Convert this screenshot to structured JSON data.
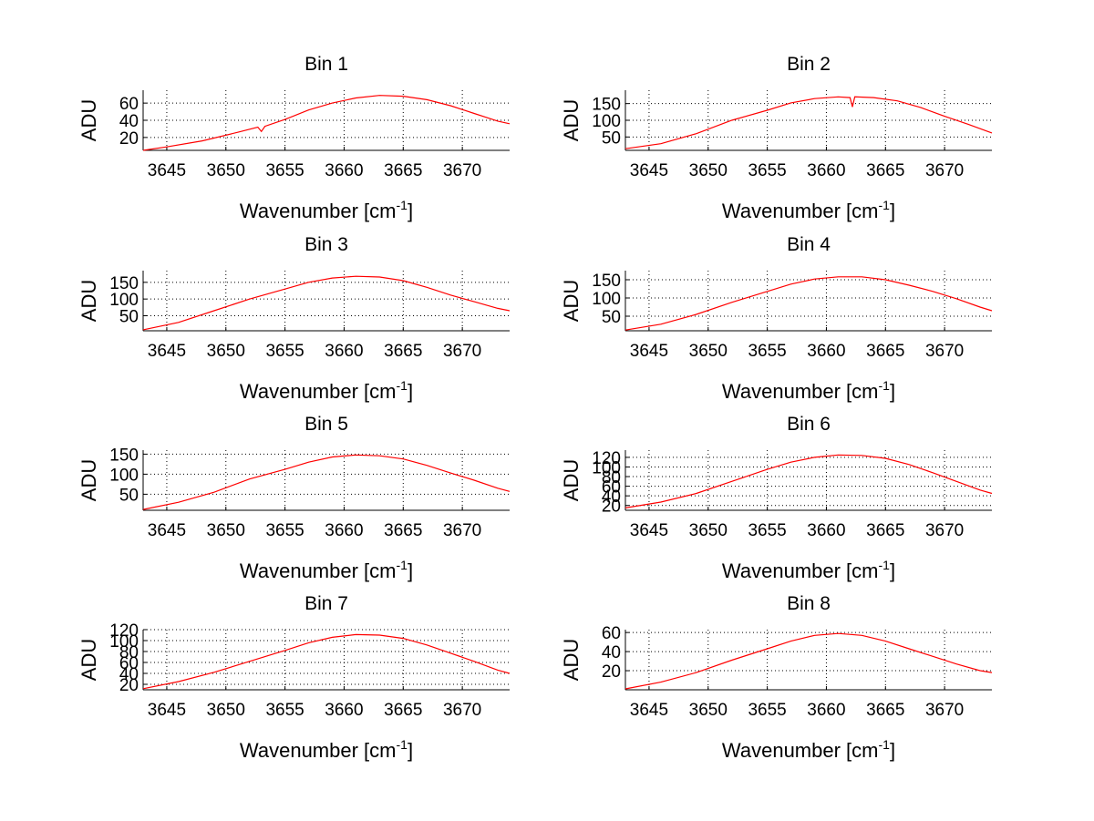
{
  "chart_data": [
    {
      "type": "line",
      "title": "Bin 1",
      "xlabel": "Wavenumber [cm",
      "xlabel_sup": "-1",
      "xlabel_end": "]",
      "ylabel": "ADU",
      "xlim": [
        3643,
        3674
      ],
      "ylim": [
        5,
        75
      ],
      "xticks": [
        3645,
        3650,
        3655,
        3660,
        3665,
        3670
      ],
      "yticks": [
        20,
        40,
        60
      ],
      "grid": true,
      "series": [
        {
          "color": "#ff0000",
          "points": [
            [
              3643,
              5
            ],
            [
              3645,
              9
            ],
            [
              3648,
              16
            ],
            [
              3651,
              26
            ],
            [
              3652.7,
              32
            ],
            [
              3653,
              27
            ],
            [
              3653.3,
              33
            ],
            [
              3655,
              41
            ],
            [
              3657,
              52
            ],
            [
              3659,
              60
            ],
            [
              3661,
              66
            ],
            [
              3663,
              69
            ],
            [
              3665,
              68
            ],
            [
              3667,
              64
            ],
            [
              3669,
              57
            ],
            [
              3671,
              48
            ],
            [
              3673,
              39
            ],
            [
              3674,
              36
            ]
          ]
        }
      ]
    },
    {
      "type": "line",
      "title": "Bin 2",
      "xlabel": "Wavenumber [cm",
      "xlabel_sup": "-1",
      "xlabel_end": "]",
      "ylabel": "ADU",
      "xlim": [
        3643,
        3674
      ],
      "ylim": [
        10,
        190
      ],
      "xticks": [
        3645,
        3650,
        3655,
        3660,
        3665,
        3670
      ],
      "yticks": [
        50,
        100,
        150
      ],
      "grid": true,
      "series": [
        {
          "color": "#ff0000",
          "points": [
            [
              3643,
              15
            ],
            [
              3646,
              30
            ],
            [
              3649,
              60
            ],
            [
              3652,
              100
            ],
            [
              3655,
              130
            ],
            [
              3657,
              152
            ],
            [
              3659,
              165
            ],
            [
              3661,
              170
            ],
            [
              3662,
              168
            ],
            [
              3662.2,
              140
            ],
            [
              3662.4,
              170
            ],
            [
              3664,
              168
            ],
            [
              3666,
              158
            ],
            [
              3668,
              138
            ],
            [
              3670,
              112
            ],
            [
              3672,
              88
            ],
            [
              3674,
              62
            ]
          ]
        }
      ]
    },
    {
      "type": "line",
      "title": "Bin 3",
      "xlabel": "Wavenumber [cm",
      "xlabel_sup": "-1",
      "xlabel_end": "]",
      "ylabel": "ADU",
      "xlim": [
        3643,
        3674
      ],
      "ylim": [
        5,
        185
      ],
      "xticks": [
        3645,
        3650,
        3655,
        3660,
        3665,
        3670
      ],
      "yticks": [
        50,
        100,
        150
      ],
      "grid": true,
      "series": [
        {
          "color": "#ff0000",
          "points": [
            [
              3643,
              8
            ],
            [
              3646,
              30
            ],
            [
              3649,
              65
            ],
            [
              3652,
              100
            ],
            [
              3655,
              130
            ],
            [
              3657,
              150
            ],
            [
              3659,
              163
            ],
            [
              3661,
              168
            ],
            [
              3663,
              166
            ],
            [
              3665,
              155
            ],
            [
              3667,
              135
            ],
            [
              3669,
              112
            ],
            [
              3671,
              92
            ],
            [
              3673,
              72
            ],
            [
              3674,
              65
            ]
          ]
        }
      ]
    },
    {
      "type": "line",
      "title": "Bin 4",
      "xlabel": "Wavenumber [cm",
      "xlabel_sup": "-1",
      "xlabel_end": "]",
      "ylabel": "ADU",
      "xlim": [
        3643,
        3674
      ],
      "ylim": [
        10,
        175
      ],
      "xticks": [
        3645,
        3650,
        3655,
        3660,
        3665,
        3670
      ],
      "yticks": [
        50,
        100,
        150
      ],
      "grid": true,
      "series": [
        {
          "color": "#ff0000",
          "points": [
            [
              3643,
              12
            ],
            [
              3646,
              28
            ],
            [
              3649,
              55
            ],
            [
              3652,
              88
            ],
            [
              3655,
              118
            ],
            [
              3657,
              138
            ],
            [
              3659,
              152
            ],
            [
              3661,
              158
            ],
            [
              3663,
              158
            ],
            [
              3665,
              150
            ],
            [
              3667,
              135
            ],
            [
              3669,
              118
            ],
            [
              3671,
              98
            ],
            [
              3673,
              75
            ],
            [
              3674,
              65
            ]
          ]
        }
      ]
    },
    {
      "type": "line",
      "title": "Bin 5",
      "xlabel": "Wavenumber [cm",
      "xlabel_sup": "-1",
      "xlabel_end": "]",
      "ylabel": "ADU",
      "xlim": [
        3643,
        3674
      ],
      "ylim": [
        10,
        160
      ],
      "xticks": [
        3645,
        3650,
        3655,
        3660,
        3665,
        3670
      ],
      "yticks": [
        50,
        100,
        150
      ],
      "grid": true,
      "series": [
        {
          "color": "#ff0000",
          "points": [
            [
              3643,
              12
            ],
            [
              3646,
              30
            ],
            [
              3649,
              55
            ],
            [
              3652,
              88
            ],
            [
              3655,
              112
            ],
            [
              3657,
              130
            ],
            [
              3659,
              143
            ],
            [
              3661,
              148
            ],
            [
              3663,
              146
            ],
            [
              3665,
              138
            ],
            [
              3667,
              122
            ],
            [
              3669,
              103
            ],
            [
              3671,
              85
            ],
            [
              3673,
              65
            ],
            [
              3674,
              57
            ]
          ]
        }
      ]
    },
    {
      "type": "line",
      "title": "Bin 6",
      "xlabel": "Wavenumber [cm",
      "xlabel_sup": "-1",
      "xlabel_end": "]",
      "ylabel": "ADU",
      "xlim": [
        3643,
        3674
      ],
      "ylim": [
        10,
        135
      ],
      "xticks": [
        3645,
        3650,
        3655,
        3660,
        3665,
        3670
      ],
      "yticks": [
        20,
        40,
        60,
        80,
        100,
        120
      ],
      "ytick_labels": [
        "20",
        "40",
        "60",
        "80",
        "100",
        "120"
      ],
      "grid": true,
      "series": [
        {
          "color": "#ff0000",
          "points": [
            [
              3643,
              15
            ],
            [
              3646,
              27
            ],
            [
              3649,
              45
            ],
            [
              3652,
              70
            ],
            [
              3655,
              95
            ],
            [
              3657,
              110
            ],
            [
              3659,
              120
            ],
            [
              3661,
              125
            ],
            [
              3663,
              124
            ],
            [
              3665,
              118
            ],
            [
              3667,
              105
            ],
            [
              3669,
              88
            ],
            [
              3671,
              70
            ],
            [
              3673,
              52
            ],
            [
              3674,
              45
            ]
          ]
        }
      ]
    },
    {
      "type": "line",
      "title": "Bin 7",
      "xlabel": "Wavenumber [cm",
      "xlabel_sup": "-1",
      "xlabel_end": "]",
      "ylabel": "ADU",
      "xlim": [
        3643,
        3674
      ],
      "ylim": [
        10,
        120
      ],
      "xticks": [
        3645,
        3650,
        3655,
        3660,
        3665,
        3670
      ],
      "yticks": [
        20,
        40,
        60,
        80,
        100,
        120
      ],
      "ytick_labels": [
        "20",
        "40",
        "60",
        "80",
        "100",
        "120"
      ],
      "grid": true,
      "series": [
        {
          "color": "#ff0000",
          "points": [
            [
              3643,
              12
            ],
            [
              3646,
              25
            ],
            [
              3649,
              42
            ],
            [
              3652,
              62
            ],
            [
              3655,
              82
            ],
            [
              3657,
              96
            ],
            [
              3659,
              106
            ],
            [
              3661,
              111
            ],
            [
              3663,
              110
            ],
            [
              3665,
              104
            ],
            [
              3667,
              92
            ],
            [
              3669,
              77
            ],
            [
              3671,
              62
            ],
            [
              3673,
              46
            ],
            [
              3674,
              40
            ]
          ]
        }
      ]
    },
    {
      "type": "line",
      "title": "Bin 8",
      "xlabel": "Wavenumber [cm",
      "xlabel_sup": "-1",
      "xlabel_end": "]",
      "ylabel": "ADU",
      "xlim": [
        3643,
        3674
      ],
      "ylim": [
        0,
        63
      ],
      "xticks": [
        3645,
        3650,
        3655,
        3660,
        3665,
        3670
      ],
      "yticks": [
        20,
        40,
        60
      ],
      "grid": true,
      "series": [
        {
          "color": "#ff0000",
          "points": [
            [
              3643,
              1
            ],
            [
              3646,
              8
            ],
            [
              3649,
              18
            ],
            [
              3652,
              31
            ],
            [
              3655,
              43
            ],
            [
              3657,
              51
            ],
            [
              3659,
              57
            ],
            [
              3661,
              59
            ],
            [
              3663,
              57
            ],
            [
              3665,
              51
            ],
            [
              3667,
              43
            ],
            [
              3669,
              35
            ],
            [
              3671,
              27
            ],
            [
              3673,
              20
            ],
            [
              3674,
              18
            ]
          ]
        }
      ]
    }
  ]
}
